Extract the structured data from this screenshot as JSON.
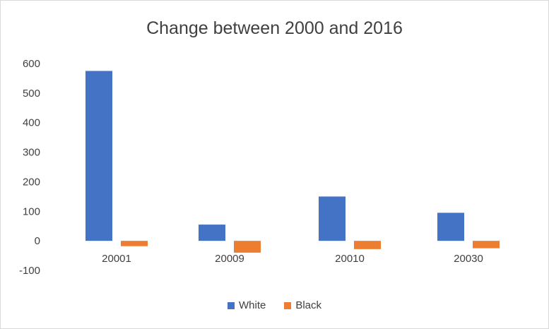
{
  "chart_data": {
    "type": "bar",
    "title": "Change between 2000 and 2016",
    "xlabel": "",
    "ylabel": "",
    "categories": [
      "20001",
      "20009",
      "20010",
      "20030"
    ],
    "series": [
      {
        "name": "White",
        "color": "#4472C4",
        "values": [
          575,
          55,
          150,
          95
        ]
      },
      {
        "name": "Black",
        "color": "#ED7D31",
        "values": [
          -18,
          -40,
          -28,
          -25
        ]
      }
    ],
    "ylim": [
      -100,
      600
    ],
    "yticks": [
      600,
      500,
      400,
      300,
      200,
      100,
      0,
      -100
    ],
    "grid": false,
    "legend": "bottom"
  }
}
